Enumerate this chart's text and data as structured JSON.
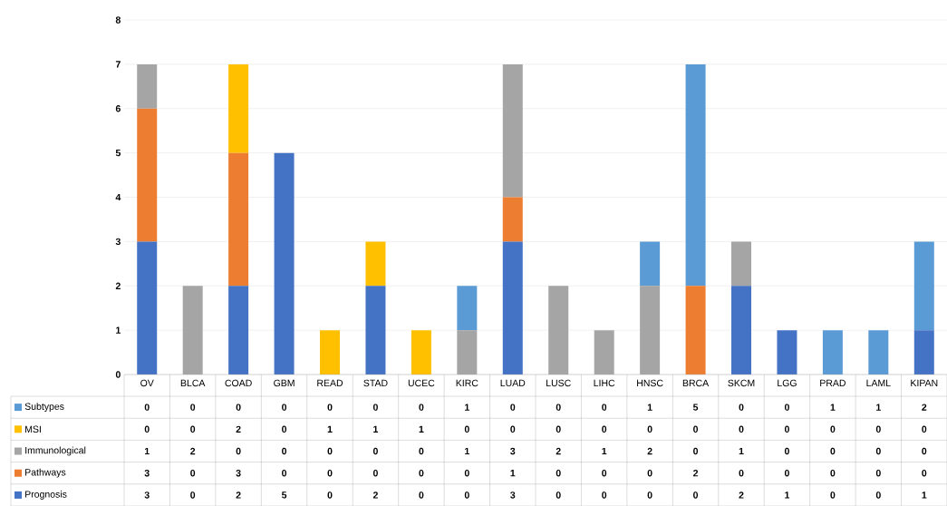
{
  "chart_data": {
    "type": "bar",
    "stacked": true,
    "categories": [
      "OV",
      "BLCA",
      "COAD",
      "GBM",
      "READ",
      "STAD",
      "UCEC",
      "KIRC",
      "LUAD",
      "LUSC",
      "LIHC",
      "HNSC",
      "BRCA",
      "SKCM",
      "LGG",
      "PRAD",
      "LAML",
      "KIPAN"
    ],
    "series": [
      {
        "name": "Prognosis",
        "color": "#4472c4",
        "values": [
          3,
          0,
          2,
          5,
          0,
          2,
          0,
          0,
          3,
          0,
          0,
          0,
          0,
          2,
          1,
          0,
          0,
          1
        ]
      },
      {
        "name": "Pathways",
        "color": "#ed7d31",
        "values": [
          3,
          0,
          3,
          0,
          0,
          0,
          0,
          0,
          1,
          0,
          0,
          0,
          2,
          0,
          0,
          0,
          0,
          0
        ]
      },
      {
        "name": "Immunological",
        "color": "#a5a5a5",
        "values": [
          1,
          2,
          0,
          0,
          0,
          0,
          0,
          1,
          3,
          2,
          1,
          2,
          0,
          1,
          0,
          0,
          0,
          0
        ]
      },
      {
        "name": "MSI",
        "color": "#ffc000",
        "values": [
          0,
          0,
          2,
          0,
          1,
          1,
          1,
          0,
          0,
          0,
          0,
          0,
          0,
          0,
          0,
          0,
          0,
          0
        ]
      },
      {
        "name": "Subtypes",
        "color": "#5b9bd5",
        "values": [
          0,
          0,
          0,
          0,
          0,
          0,
          0,
          1,
          0,
          0,
          0,
          1,
          5,
          0,
          0,
          1,
          1,
          2
        ]
      }
    ],
    "ylim": [
      0,
      8
    ],
    "yticks": [
      0,
      1,
      2,
      3,
      4,
      5,
      6,
      7,
      8
    ],
    "grid": "y",
    "legend": "bottom",
    "data_labels": true
  }
}
